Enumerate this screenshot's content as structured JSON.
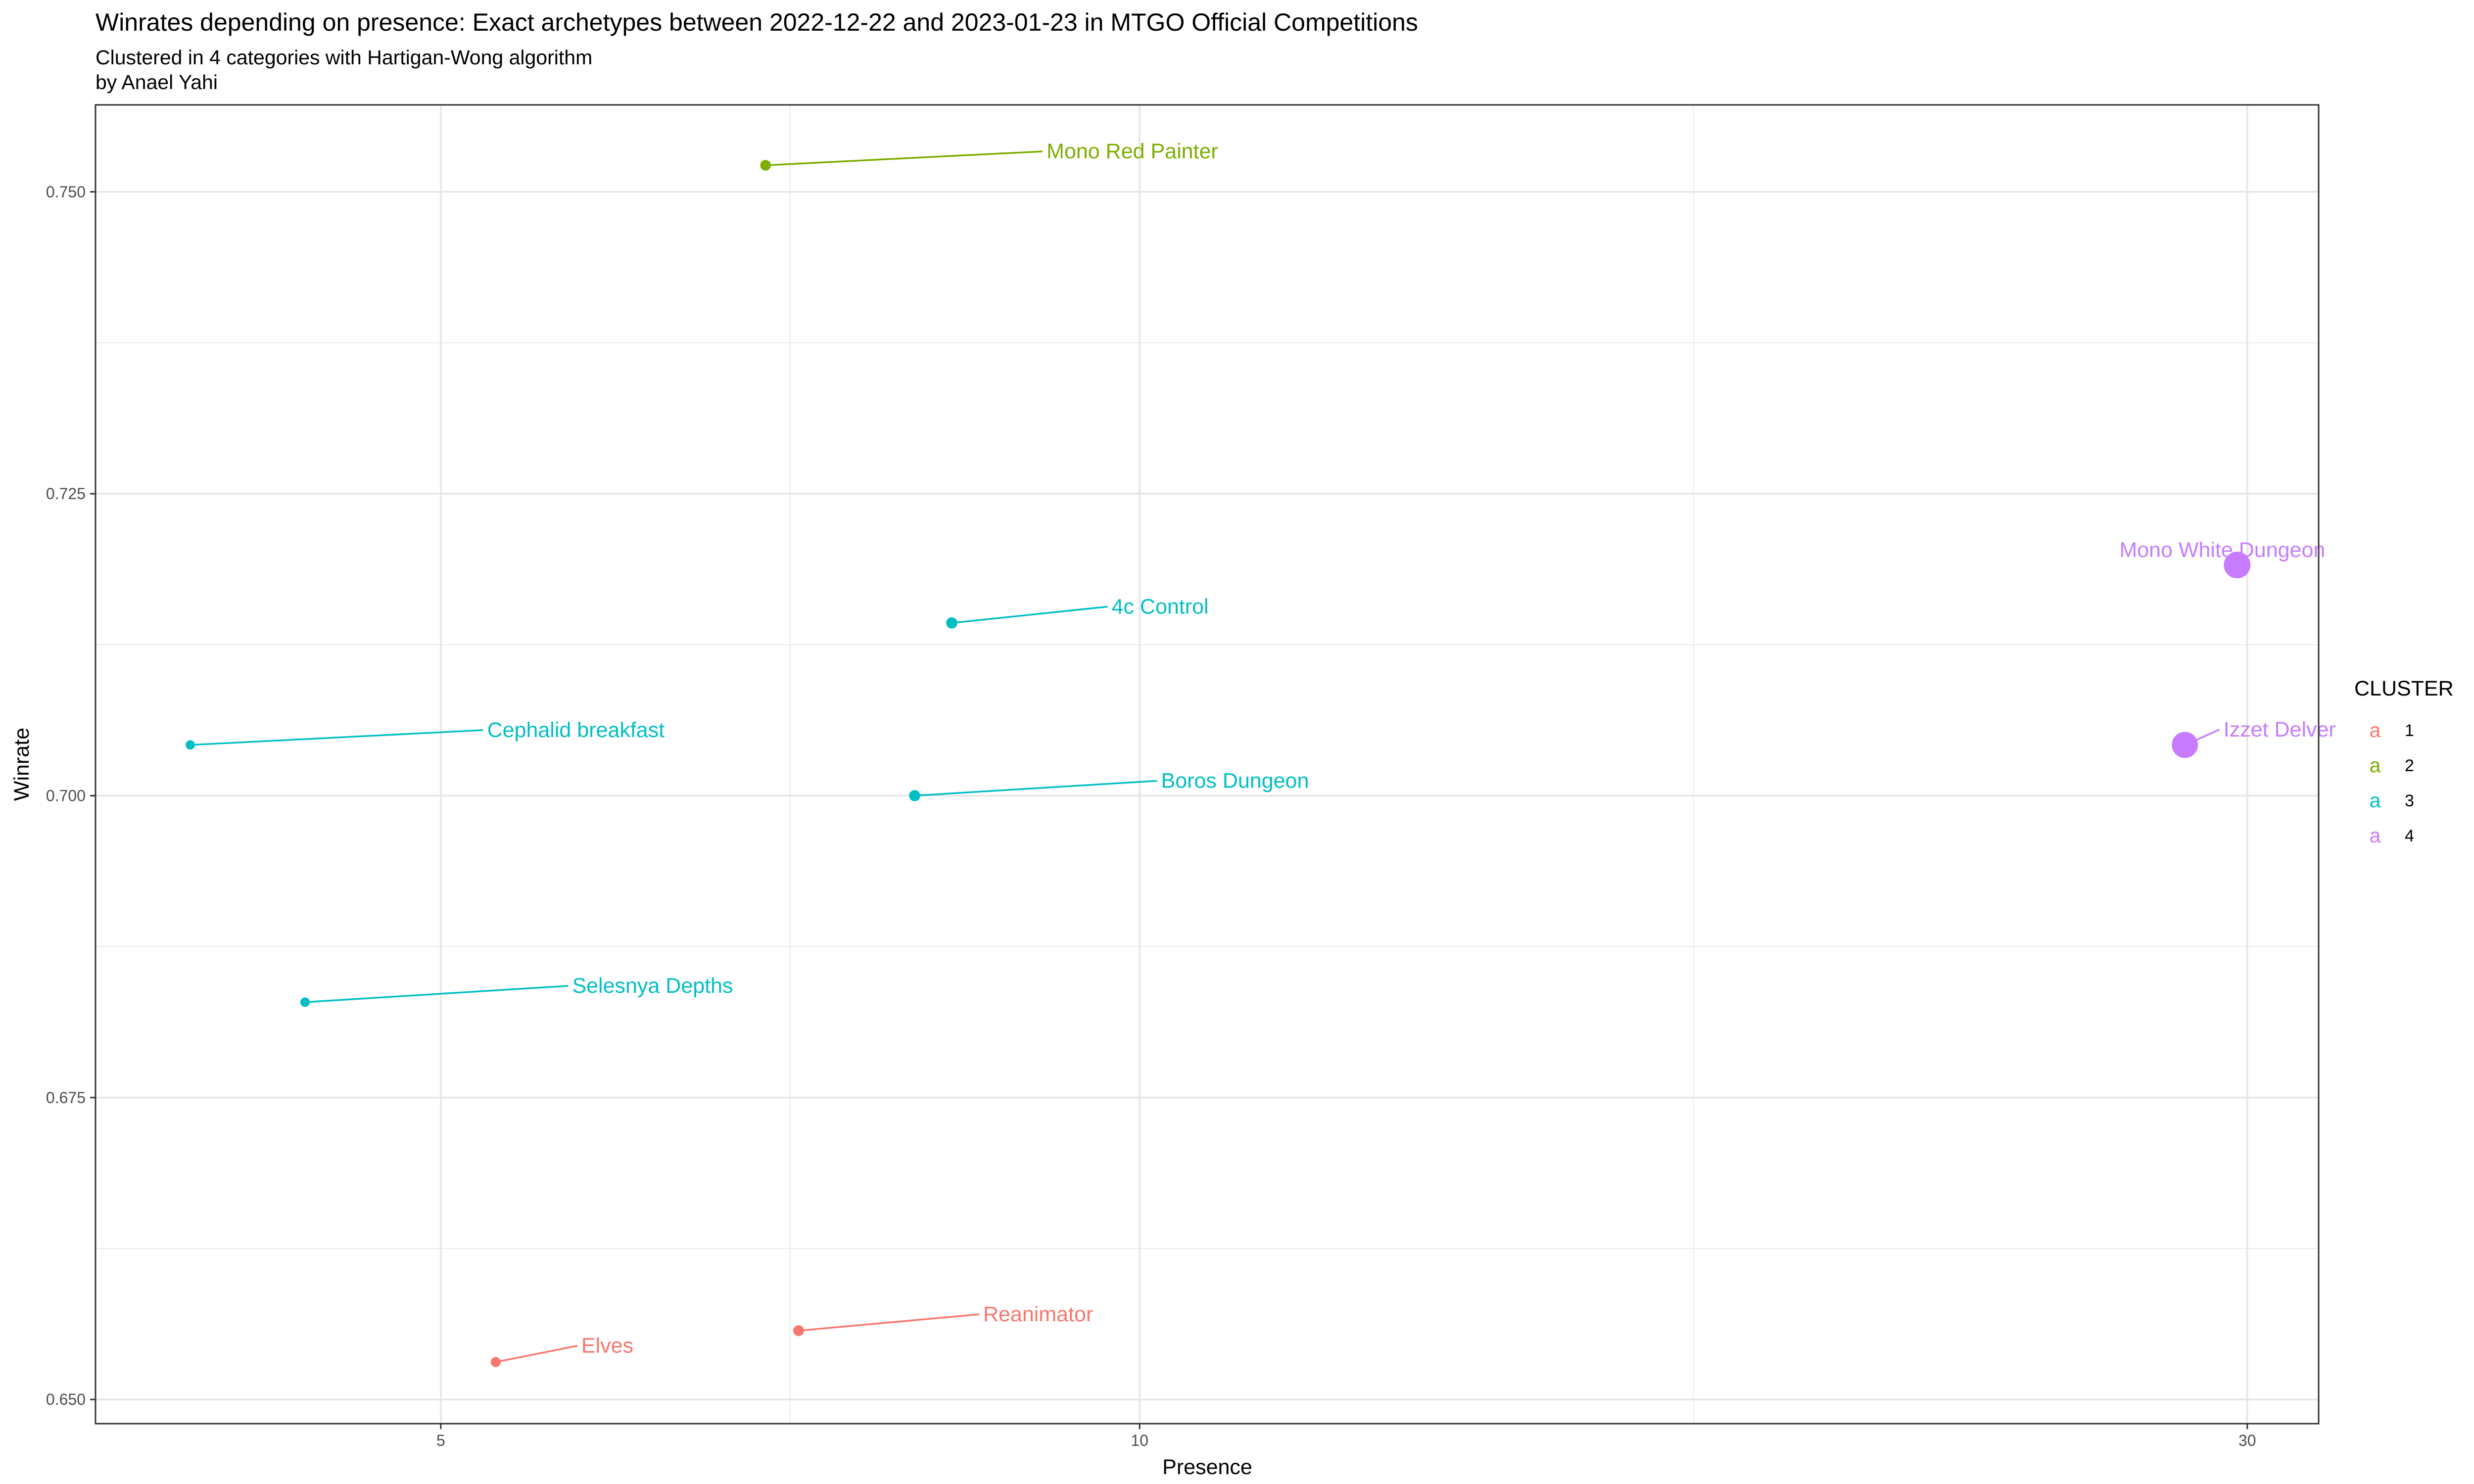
{
  "chart_data": {
    "type": "scatter",
    "title": "Winrates depending on presence: Exact archetypes  between 2022-12-22 and 2023-01-23 in MTGO Official Competitions",
    "subtitle_lines": [
      "Clustered in 4 categories with Hartigan-Wong algorithm",
      "by Anael Yahi"
    ],
    "xlabel": "Presence",
    "ylabel": "Winrate",
    "x_scale": "log10",
    "xlim": [
      3.55,
      32.2
    ],
    "ylim": [
      0.648,
      0.7572
    ],
    "x_ticks": [
      {
        "value": 5,
        "label": "5"
      },
      {
        "value": 10,
        "label": "10"
      },
      {
        "value": 30,
        "label": "30"
      }
    ],
    "x_minor_ticks": [
      7.07,
      17.32
    ],
    "y_ticks": [
      {
        "value": 0.65,
        "label": "0.650"
      },
      {
        "value": 0.675,
        "label": "0.675"
      },
      {
        "value": 0.7,
        "label": "0.700"
      },
      {
        "value": 0.725,
        "label": "0.725"
      },
      {
        "value": 0.75,
        "label": "0.750"
      }
    ],
    "y_minor_ticks": [
      0.6625,
      0.6875,
      0.7125,
      0.7375
    ],
    "legend": {
      "title": "CLUSTER",
      "position": "right",
      "key_glyph": "a",
      "entries": [
        {
          "label": "1",
          "color": "#F8766D"
        },
        {
          "label": "2",
          "color": "#7CAE00"
        },
        {
          "label": "3",
          "color": "#00BFC4"
        },
        {
          "label": "4",
          "color": "#C77CFF"
        }
      ]
    },
    "points": [
      {
        "name": "Mono Red Painter",
        "presence": 6.9,
        "winrate": 0.7522,
        "cluster": 2
      },
      {
        "name": "4c Control",
        "presence": 8.3,
        "winrate": 0.7143,
        "cluster": 3
      },
      {
        "name": "Cephalid breakfast",
        "presence": 3.9,
        "winrate": 0.7042,
        "cluster": 3
      },
      {
        "name": "Boros Dungeon",
        "presence": 8.0,
        "winrate": 0.7,
        "cluster": 3
      },
      {
        "name": "Selesnya Depths",
        "presence": 4.37,
        "winrate": 0.6829,
        "cluster": 3
      },
      {
        "name": "Reanimator",
        "presence": 7.13,
        "winrate": 0.6557,
        "cluster": 1
      },
      {
        "name": "Elves",
        "presence": 5.28,
        "winrate": 0.6531,
        "cluster": 1
      },
      {
        "name": "Mono White Dungeon",
        "presence": 29.7,
        "winrate": 0.7191,
        "cluster": 4
      },
      {
        "name": "Izzet Delver",
        "presence": 28.2,
        "winrate": 0.7042,
        "cluster": 4
      }
    ]
  }
}
